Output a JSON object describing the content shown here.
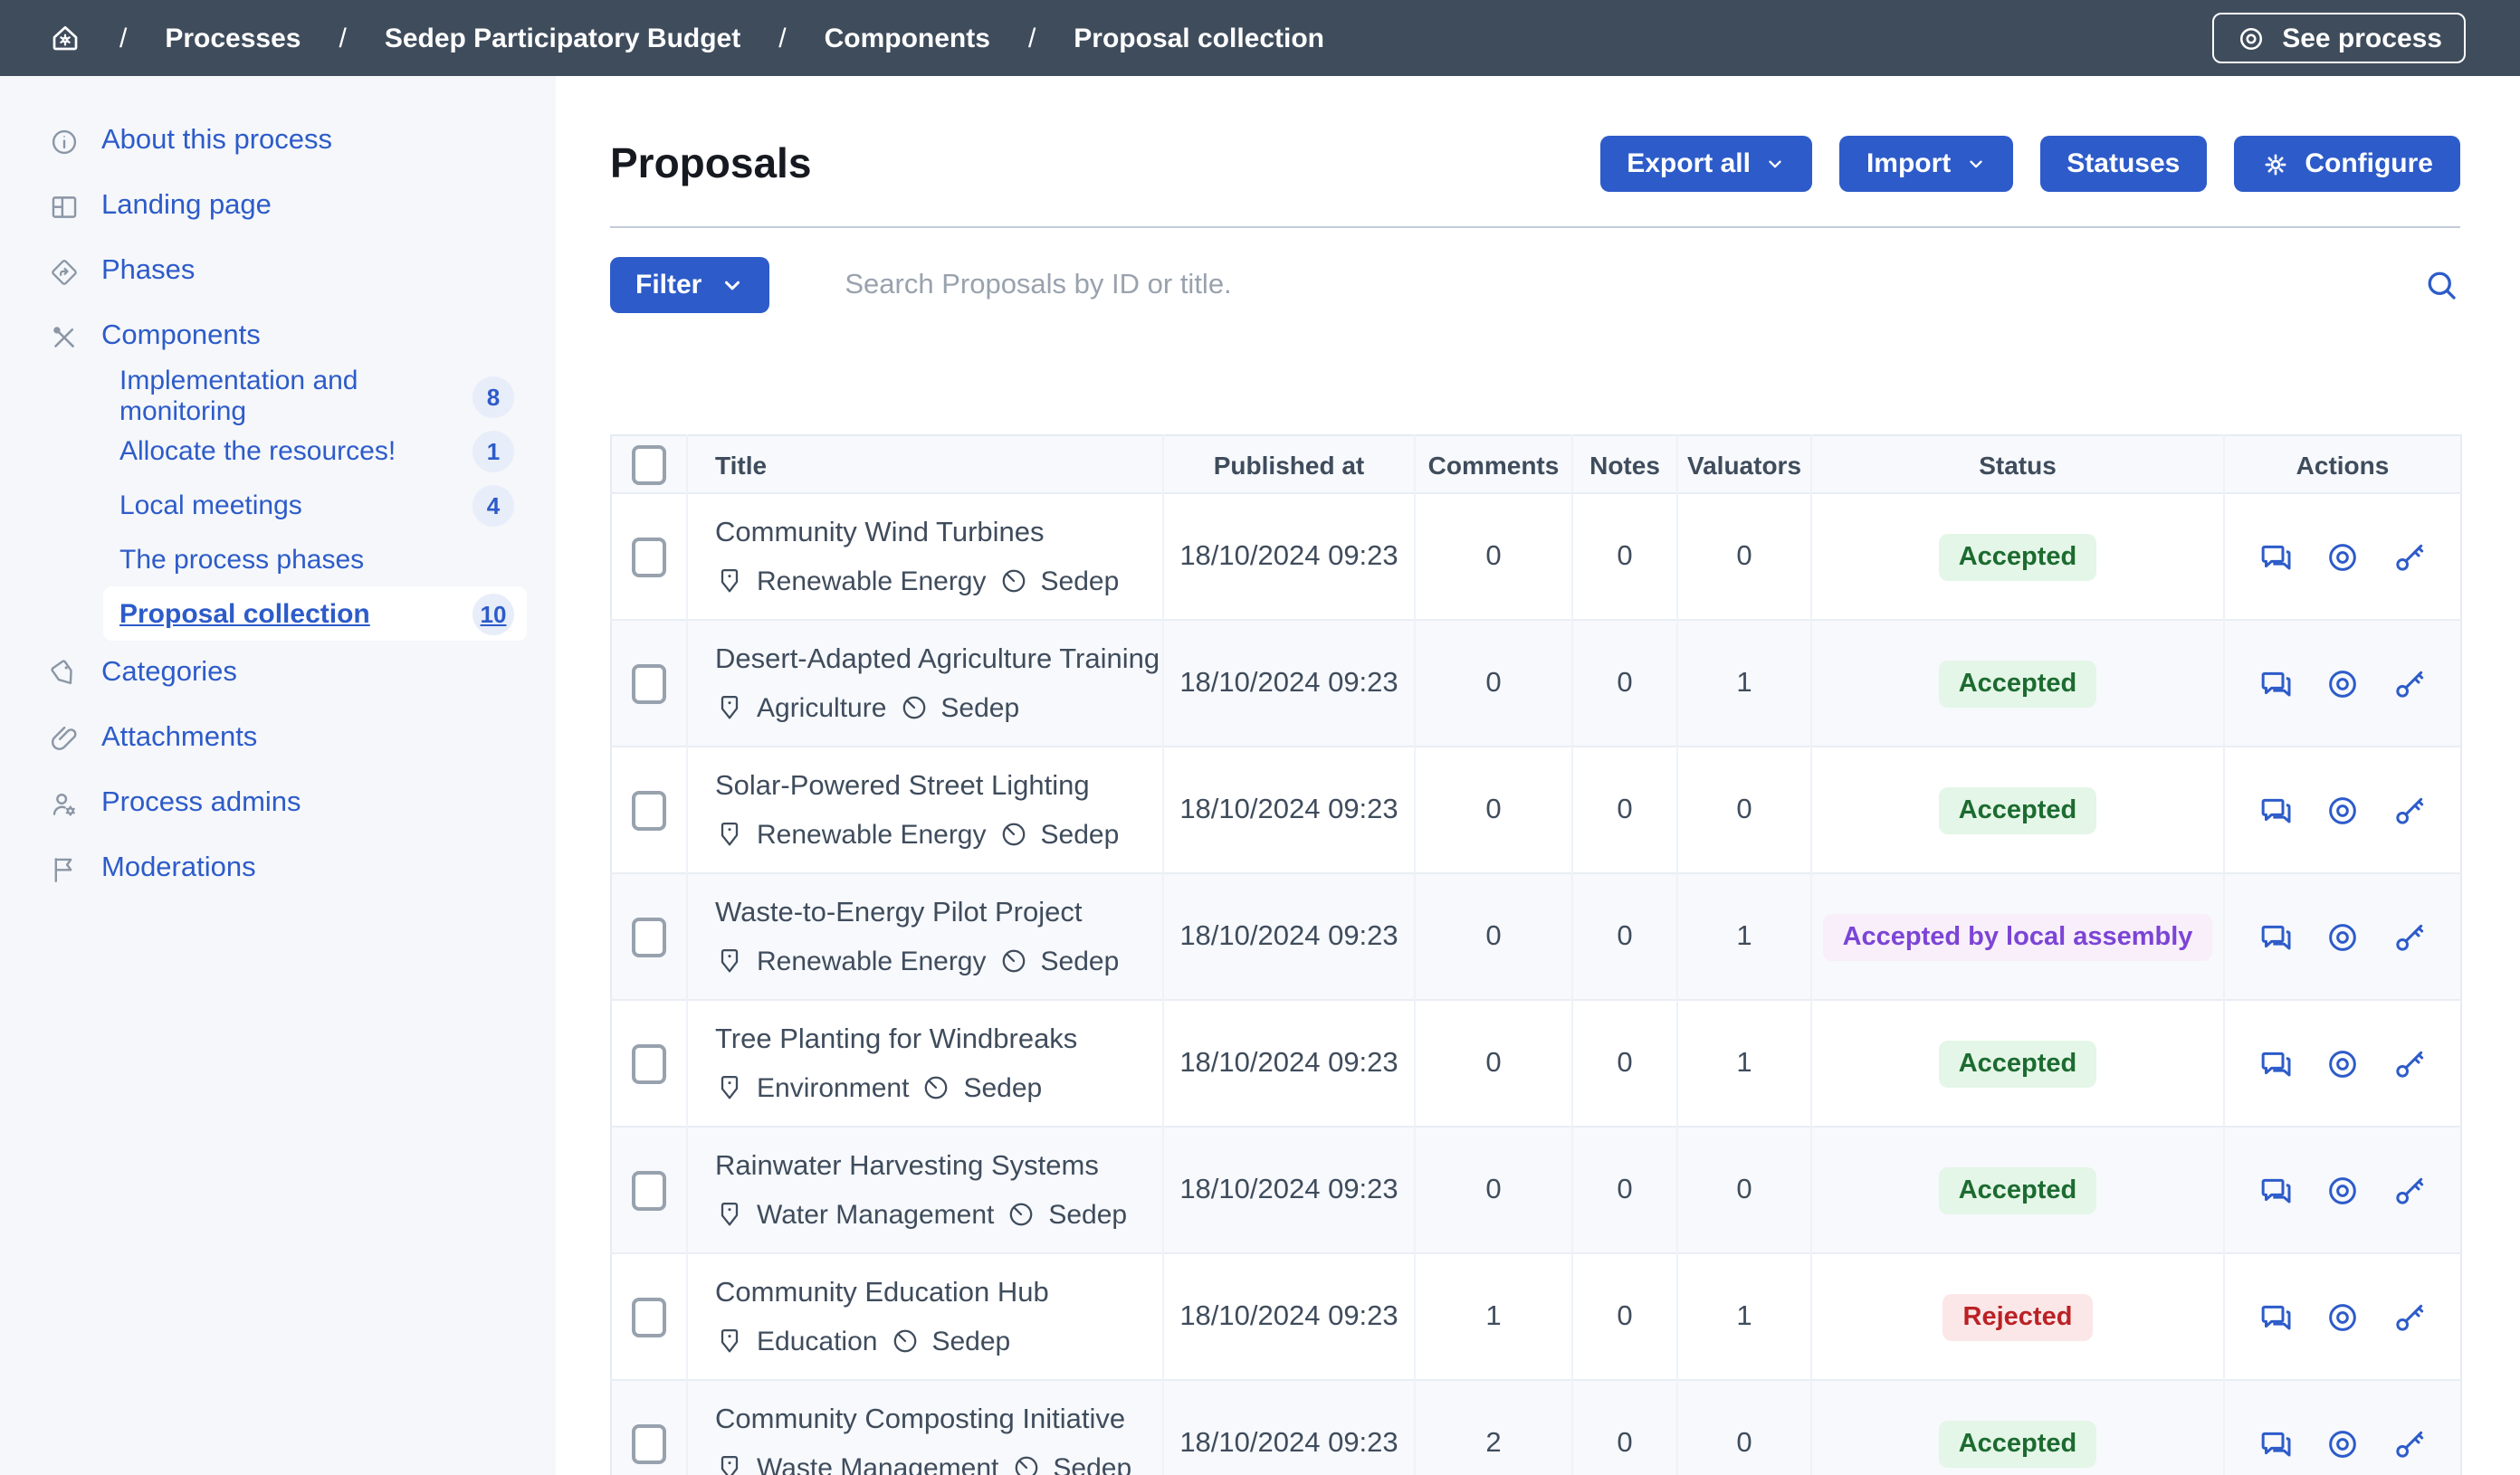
{
  "topbar": {
    "breadcrumb": [
      "Processes",
      "Sedep Participatory Budget",
      "Components",
      "Proposal collection"
    ],
    "see_process_label": "See process"
  },
  "sidebar": {
    "items": [
      {
        "label": "About this process",
        "icon": "info"
      },
      {
        "label": "Landing page",
        "icon": "layout"
      },
      {
        "label": "Phases",
        "icon": "direction"
      },
      {
        "label": "Components",
        "icon": "tools",
        "children": [
          {
            "label": "Implementation and monitoring",
            "count": "8"
          },
          {
            "label": "Allocate the resources!",
            "count": "1"
          },
          {
            "label": "Local meetings",
            "count": "4"
          },
          {
            "label": "The process phases",
            "count": ""
          },
          {
            "label": "Proposal collection",
            "count": "10",
            "selected": true
          }
        ]
      },
      {
        "label": "Categories",
        "icon": "tag"
      },
      {
        "label": "Attachments",
        "icon": "paperclip"
      },
      {
        "label": "Process admins",
        "icon": "user-gear"
      },
      {
        "label": "Moderations",
        "icon": "flag"
      }
    ]
  },
  "main": {
    "title": "Proposals",
    "toolbar": {
      "export_all": "Export all",
      "import": "Import",
      "statuses": "Statuses",
      "configure": "Configure"
    },
    "filter_label": "Filter",
    "search_placeholder": "Search Proposals by ID or title.",
    "table": {
      "headers": [
        "Title",
        "Published at",
        "Comments",
        "Notes",
        "Valuators",
        "Status",
        "Actions"
      ],
      "rows": [
        {
          "title": "Community Wind Turbines",
          "category": "Renewable Energy",
          "scope": "Sedep",
          "published_at": "18/10/2024 09:23",
          "comments": "0",
          "notes": "0",
          "valuators": "0",
          "status": "Accepted",
          "status_type": "success"
        },
        {
          "title": "Desert-Adapted Agriculture Training",
          "category": "Agriculture",
          "scope": "Sedep",
          "published_at": "18/10/2024 09:23",
          "comments": "0",
          "notes": "0",
          "valuators": "1",
          "status": "Accepted",
          "status_type": "success"
        },
        {
          "title": "Solar-Powered Street Lighting",
          "category": "Renewable Energy",
          "scope": "Sedep",
          "published_at": "18/10/2024 09:23",
          "comments": "0",
          "notes": "0",
          "valuators": "0",
          "status": "Accepted",
          "status_type": "success"
        },
        {
          "title": "Waste-to-Energy Pilot Project",
          "category": "Renewable Energy",
          "scope": "Sedep",
          "published_at": "18/10/2024 09:23",
          "comments": "0",
          "notes": "0",
          "valuators": "1",
          "status": "Accepted by local assembly",
          "status_type": "purple"
        },
        {
          "title": "Tree Planting for Windbreaks",
          "category": "Environment",
          "scope": "Sedep",
          "published_at": "18/10/2024 09:23",
          "comments": "0",
          "notes": "0",
          "valuators": "1",
          "status": "Accepted",
          "status_type": "success"
        },
        {
          "title": "Rainwater Harvesting Systems",
          "category": "Water Management",
          "scope": "Sedep",
          "published_at": "18/10/2024 09:23",
          "comments": "0",
          "notes": "0",
          "valuators": "0",
          "status": "Accepted",
          "status_type": "success"
        },
        {
          "title": "Community Education Hub",
          "category": "Education",
          "scope": "Sedep",
          "published_at": "18/10/2024 09:23",
          "comments": "1",
          "notes": "0",
          "valuators": "1",
          "status": "Rejected",
          "status_type": "danger"
        },
        {
          "title": "Community Composting Initiative",
          "category": "Waste Management",
          "scope": "Sedep",
          "published_at": "18/10/2024 09:23",
          "comments": "2",
          "notes": "0",
          "valuators": "0",
          "status": "Accepted",
          "status_type": "success"
        }
      ]
    }
  },
  "colors": {
    "primary": "#2d5bc9",
    "topbar_bg": "#3f4c5c",
    "sidebar_bg": "#f5f7fa",
    "table_text": "#3f4c5c",
    "success_bg": "#e4f6e7",
    "success_text": "#1c6b30",
    "purple_bg": "#f8effb",
    "purple_text": "#7c44d6",
    "danger_bg": "#fbe7e8",
    "danger_text": "#bb2125"
  }
}
